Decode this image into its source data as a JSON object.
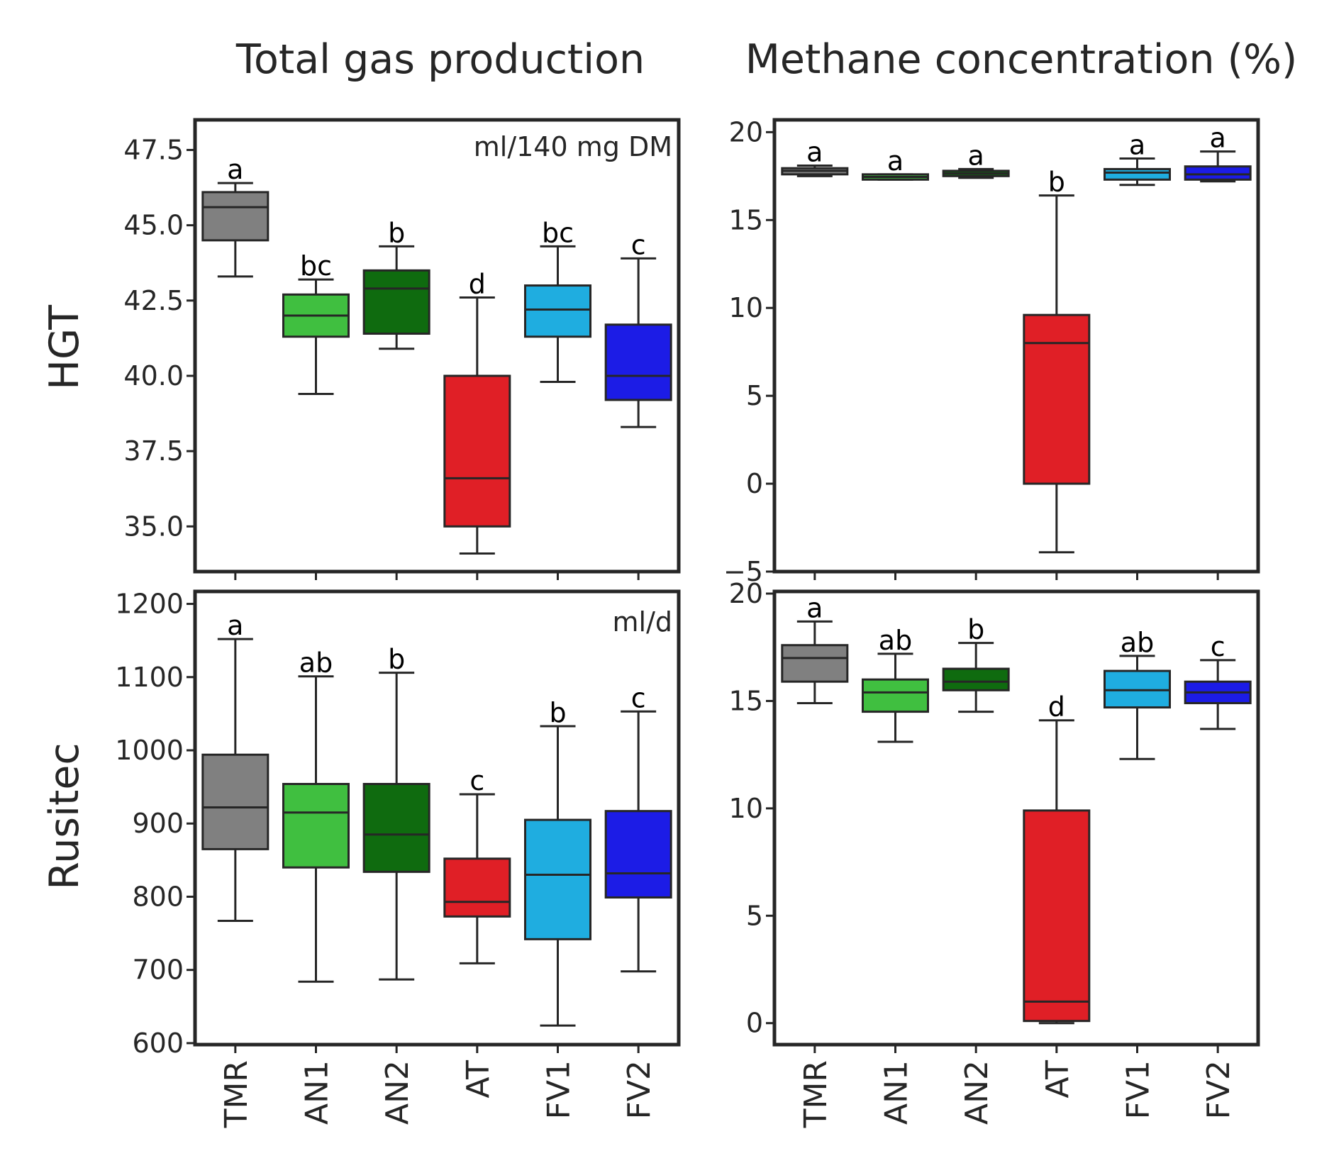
{
  "columns": [
    "Total gas production",
    "Methane concentration (%)"
  ],
  "rows": [
    "HGT",
    "Rusitec"
  ],
  "colors": {
    "TMR": "#808080",
    "AN1": "#40bf40",
    "AN2": "#0f6b0f",
    "AT": "#e01f26",
    "FV1": "#1fade0",
    "FV2": "#1c1ce6",
    "frame": "#262626",
    "line": "#262626"
  },
  "chart_data": [
    {
      "type": "box",
      "row": "HGT",
      "column": "Total gas production",
      "unit_label": "ml/140 mg DM",
      "categories": [
        "TMR",
        "AN1",
        "AN2",
        "AT",
        "FV1",
        "FV2"
      ],
      "ylim": [
        33.5,
        48.5
      ],
      "yticks": [
        35.0,
        37.5,
        40.0,
        42.5,
        45.0,
        47.5
      ],
      "ytick_labels": [
        "35.0",
        "37.5",
        "40.0",
        "42.5",
        "45.0",
        "47.5"
      ],
      "boxes": [
        {
          "whislo": 43.3,
          "q1": 44.5,
          "med": 45.6,
          "q3": 46.1,
          "whishi": 46.4,
          "letter": "a"
        },
        {
          "whislo": 39.4,
          "q1": 41.3,
          "med": 42.0,
          "q3": 42.7,
          "whishi": 43.2,
          "letter": "bc"
        },
        {
          "whislo": 40.9,
          "q1": 41.4,
          "med": 42.9,
          "q3": 43.5,
          "whishi": 44.3,
          "letter": "b"
        },
        {
          "whislo": 34.1,
          "q1": 35.0,
          "med": 36.6,
          "q3": 40.0,
          "whishi": 42.6,
          "letter": "d"
        },
        {
          "whislo": 39.8,
          "q1": 41.3,
          "med": 42.2,
          "q3": 43.0,
          "whishi": 44.3,
          "letter": "bc"
        },
        {
          "whislo": 38.3,
          "q1": 39.2,
          "med": 40.0,
          "q3": 41.7,
          "whishi": 43.9,
          "letter": "c"
        }
      ]
    },
    {
      "type": "box",
      "row": "HGT",
      "column": "Methane concentration (%)",
      "unit_label": "",
      "categories": [
        "TMR",
        "AN1",
        "AN2",
        "AT",
        "FV1",
        "FV2"
      ],
      "ylim": [
        -5,
        20.7
      ],
      "yticks": [
        -5,
        0,
        5,
        10,
        15,
        20
      ],
      "ytick_labels": [
        "−5",
        "0",
        "5",
        "10",
        "15",
        "20"
      ],
      "boxes": [
        {
          "whislo": 17.5,
          "q1": 17.6,
          "med": 17.8,
          "q3": 17.95,
          "whishi": 18.1,
          "letter": "a"
        },
        {
          "whislo": 17.3,
          "q1": 17.3,
          "med": 17.45,
          "q3": 17.6,
          "whishi": 17.6,
          "letter": "a"
        },
        {
          "whislo": 17.4,
          "q1": 17.5,
          "med": 17.65,
          "q3": 17.8,
          "whishi": 17.9,
          "letter": "a"
        },
        {
          "whislo": -3.9,
          "q1": 0.0,
          "med": 8.0,
          "q3": 9.6,
          "whishi": 16.4,
          "letter": "b"
        },
        {
          "whislo": 17.0,
          "q1": 17.3,
          "med": 17.7,
          "q3": 17.9,
          "whishi": 18.5,
          "letter": "a"
        },
        {
          "whislo": 17.2,
          "q1": 17.3,
          "med": 17.6,
          "q3": 18.05,
          "whishi": 18.9,
          "letter": "a"
        }
      ]
    },
    {
      "type": "box",
      "row": "Rusitec",
      "column": "Total gas production",
      "unit_label": "ml/d",
      "categories": [
        "TMR",
        "AN1",
        "AN2",
        "AT",
        "FV1",
        "FV2"
      ],
      "ylim": [
        598,
        1217
      ],
      "yticks": [
        600,
        700,
        800,
        900,
        1000,
        1100,
        1200
      ],
      "ytick_labels": [
        "600",
        "700",
        "800",
        "900",
        "1000",
        "1100",
        "1200"
      ],
      "boxes": [
        {
          "whislo": 767,
          "q1": 865,
          "med": 922,
          "q3": 994,
          "whishi": 1152,
          "letter": "a"
        },
        {
          "whislo": 684,
          "q1": 840,
          "med": 915,
          "q3": 954,
          "whishi": 1101,
          "letter": "ab"
        },
        {
          "whislo": 687,
          "q1": 834,
          "med": 885,
          "q3": 954,
          "whishi": 1106,
          "letter": "b"
        },
        {
          "whislo": 709,
          "q1": 773,
          "med": 793,
          "q3": 852,
          "whishi": 940,
          "letter": "c"
        },
        {
          "whislo": 624,
          "q1": 742,
          "med": 830,
          "q3": 905,
          "whishi": 1033,
          "letter": "b"
        },
        {
          "whislo": 698,
          "q1": 799,
          "med": 832,
          "q3": 917,
          "whishi": 1053,
          "letter": "c"
        }
      ]
    },
    {
      "type": "box",
      "row": "Rusitec",
      "column": "Methane concentration (%)",
      "unit_label": "",
      "categories": [
        "TMR",
        "AN1",
        "AN2",
        "AT",
        "FV1",
        "FV2"
      ],
      "ylim": [
        -1.0,
        20.1
      ],
      "yticks": [
        0,
        5,
        10,
        15,
        20
      ],
      "ytick_labels": [
        "0",
        "5",
        "10",
        "15",
        "20"
      ],
      "boxes": [
        {
          "whislo": 14.9,
          "q1": 15.9,
          "med": 17.0,
          "q3": 17.6,
          "whishi": 18.7,
          "letter": "a"
        },
        {
          "whislo": 13.1,
          "q1": 14.5,
          "med": 15.4,
          "q3": 16.0,
          "whishi": 17.2,
          "letter": "ab"
        },
        {
          "whislo": 14.5,
          "q1": 15.5,
          "med": 15.9,
          "q3": 16.5,
          "whishi": 17.7,
          "letter": "b"
        },
        {
          "whislo": 0.0,
          "q1": 0.1,
          "med": 1.0,
          "q3": 9.9,
          "whishi": 14.1,
          "letter": "d"
        },
        {
          "whislo": 12.3,
          "q1": 14.7,
          "med": 15.5,
          "q3": 16.4,
          "whishi": 17.1,
          "letter": "ab"
        },
        {
          "whislo": 13.7,
          "q1": 14.9,
          "med": 15.4,
          "q3": 15.9,
          "whishi": 16.9,
          "letter": "c"
        }
      ]
    }
  ]
}
